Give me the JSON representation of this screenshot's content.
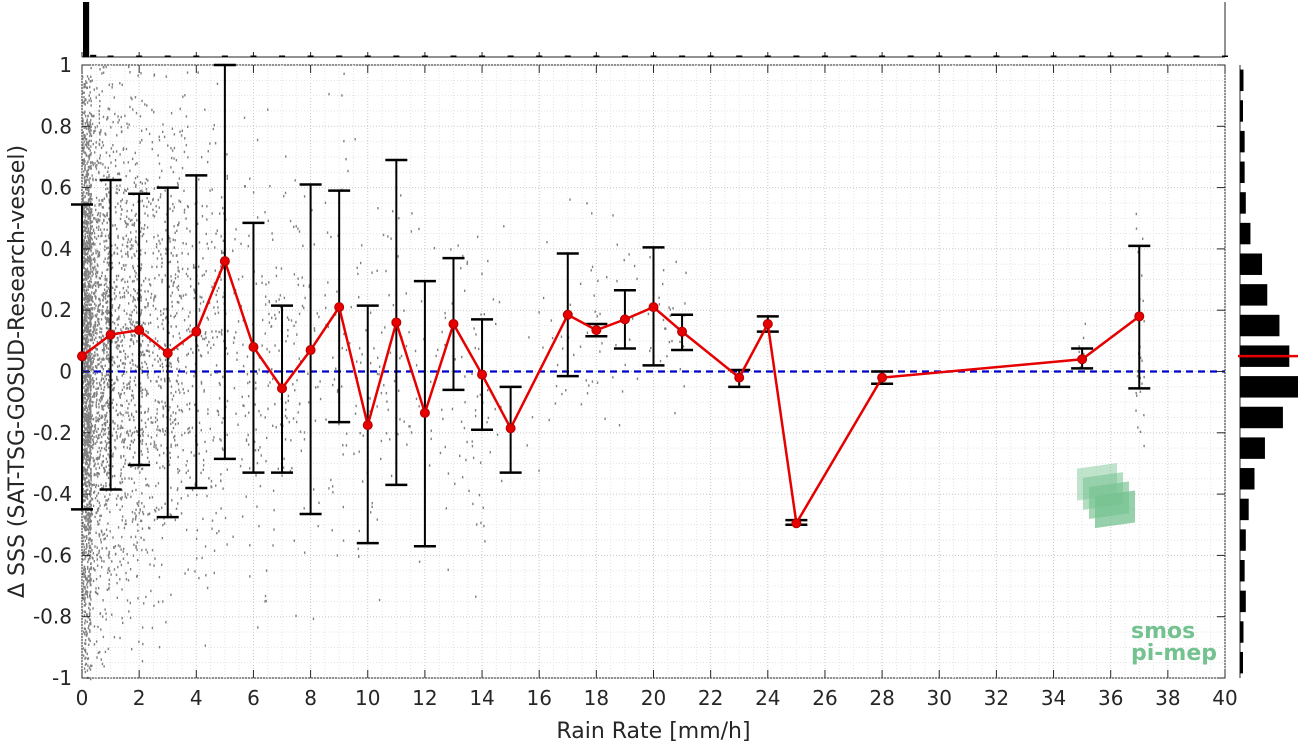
{
  "chart_data": {
    "type": "scatter",
    "xlabel": "Rain Rate [mm/h]",
    "ylabel": "Δ SSS (SAT-TSG-GOSUD-Research-vessel)",
    "xlim": [
      0,
      40
    ],
    "ylim": [
      -1,
      1
    ],
    "x_ticks": [
      "0",
      "2",
      "4",
      "6",
      "8",
      "10",
      "12",
      "14",
      "16",
      "18",
      "20",
      "22",
      "24",
      "26",
      "28",
      "30",
      "32",
      "34",
      "36",
      "38",
      "40"
    ],
    "y_ticks": [
      "-1",
      "-0.8",
      "-0.6",
      "-0.4",
      "-0.2",
      "0",
      "0.2",
      "0.4",
      "0.6",
      "0.8",
      "1"
    ],
    "grid": true,
    "zero_line": {
      "y": 0,
      "color": "#0000cc",
      "style": "dashed"
    },
    "mean_series": {
      "color": "#e60000",
      "points": [
        {
          "x": 0,
          "y": 0.05,
          "lo": -0.45,
          "hi": 0.545
        },
        {
          "x": 1,
          "y": 0.12,
          "lo": -0.385,
          "hi": 0.625
        },
        {
          "x": 2,
          "y": 0.135,
          "lo": -0.305,
          "hi": 0.58
        },
        {
          "x": 3,
          "y": 0.06,
          "lo": -0.475,
          "hi": 0.6
        },
        {
          "x": 4,
          "y": 0.13,
          "lo": -0.38,
          "hi": 0.64
        },
        {
          "x": 5,
          "y": 0.36,
          "lo": -0.285,
          "hi": 1.0
        },
        {
          "x": 6,
          "y": 0.08,
          "lo": -0.33,
          "hi": 0.485
        },
        {
          "x": 7,
          "y": -0.055,
          "lo": -0.33,
          "hi": 0.215
        },
        {
          "x": 8,
          "y": 0.07,
          "lo": -0.465,
          "hi": 0.61
        },
        {
          "x": 9,
          "y": 0.21,
          "lo": -0.165,
          "hi": 0.59
        },
        {
          "x": 10,
          "y": -0.175,
          "lo": -0.56,
          "hi": 0.215
        },
        {
          "x": 11,
          "y": 0.16,
          "lo": -0.37,
          "hi": 0.69
        },
        {
          "x": 12,
          "y": -0.135,
          "lo": -0.57,
          "hi": 0.295
        },
        {
          "x": 13,
          "y": 0.155,
          "lo": -0.06,
          "hi": 0.37
        },
        {
          "x": 14,
          "y": -0.01,
          "lo": -0.19,
          "hi": 0.17
        },
        {
          "x": 15,
          "y": -0.185,
          "lo": -0.33,
          "hi": -0.05
        },
        {
          "x": 17,
          "y": 0.185,
          "lo": -0.015,
          "hi": 0.385
        },
        {
          "x": 18,
          "y": 0.135,
          "lo": 0.115,
          "hi": 0.155
        },
        {
          "x": 19,
          "y": 0.17,
          "lo": 0.075,
          "hi": 0.265
        },
        {
          "x": 20,
          "y": 0.21,
          "lo": 0.02,
          "hi": 0.405
        },
        {
          "x": 21,
          "y": 0.13,
          "lo": 0.07,
          "hi": 0.185
        },
        {
          "x": 23,
          "y": -0.02,
          "lo": -0.05,
          "hi": 0.005
        },
        {
          "x": 24,
          "y": 0.155,
          "lo": 0.13,
          "hi": 0.18
        },
        {
          "x": 25,
          "y": -0.495,
          "lo": -0.5,
          "hi": -0.485
        },
        {
          "x": 28,
          "y": -0.02,
          "lo": -0.04,
          "hi": 0.0
        },
        {
          "x": 35,
          "y": 0.04,
          "lo": 0.01,
          "hi": 0.075
        },
        {
          "x": 37,
          "y": 0.18,
          "lo": -0.055,
          "hi": 0.41
        }
      ]
    },
    "scatter_color": "#808080",
    "top_histogram": {
      "bins_x": [
        0,
        0.25
      ],
      "max_count_fraction": 1.0,
      "values": [
        1.0,
        0.04
      ]
    },
    "right_histogram": {
      "bins_center": [
        0.95,
        0.85,
        0.75,
        0.65,
        0.55,
        0.45,
        0.35,
        0.25,
        0.15,
        0.05,
        -0.05,
        -0.15,
        -0.25,
        -0.35,
        -0.45,
        -0.55,
        -0.65,
        -0.75,
        -0.85,
        -0.95
      ],
      "values": [
        0.06,
        0.05,
        0.08,
        0.08,
        0.1,
        0.18,
        0.38,
        0.47,
        0.68,
        0.85,
        1.0,
        0.74,
        0.43,
        0.25,
        0.15,
        0.1,
        0.08,
        0.1,
        0.06,
        0.05
      ],
      "mean_marker_y": 0.05,
      "mean_marker_color": "#e60000"
    }
  },
  "watermark": {
    "line1": "smos",
    "line2": "pi-mep",
    "color": "#74c28f"
  }
}
